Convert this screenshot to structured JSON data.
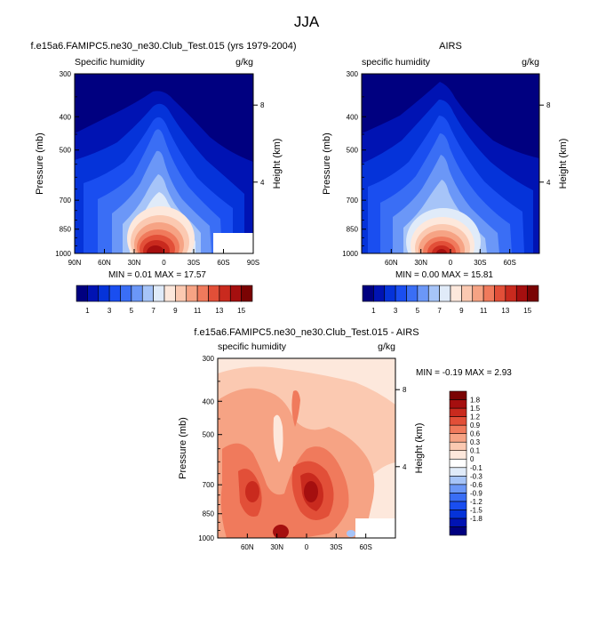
{
  "figure": {
    "title": "JJA"
  },
  "scales": {
    "top": {
      "colors": [
        "#000080",
        "#0013b3",
        "#0533d9",
        "#1a4ef0",
        "#3a6ef5",
        "#6b97f7",
        "#a6c4f8",
        "#e0ebf9",
        "#fde8dc",
        "#fbc9b1",
        "#f6a384",
        "#f07a5c",
        "#e24f38",
        "#c92a1e",
        "#a50f0f",
        "#7a0303"
      ],
      "labels": [
        "1",
        "3",
        "5",
        "7",
        "9",
        "11",
        "13",
        "15"
      ]
    },
    "diff": {
      "colors": [
        "#000080",
        "#0013b3",
        "#0533d9",
        "#1a4ef0",
        "#3a6ef5",
        "#6b97f7",
        "#a6c4f8",
        "#e0ebf9",
        "#ffffff",
        "#fde8dc",
        "#fbc9b1",
        "#f6a384",
        "#f07a5c",
        "#e24f38",
        "#c92a1e",
        "#a50f0f",
        "#7a0303"
      ],
      "labels": [
        "1.8",
        "1.5",
        "1.2",
        "0.9",
        "0.6",
        "0.3",
        "0.1",
        "0",
        "-0.1",
        "-0.3",
        "-0.6",
        "-0.9",
        "-1.2",
        "-1.5",
        "-1.8"
      ]
    }
  },
  "chart_data": [
    {
      "type": "heatmap",
      "title": "f.e15a6.FAMIPC5.ne30_ne30.Club_Test.015 (yrs 1979-2004)",
      "left_label": "Specific humidity",
      "right_label": "g/kg",
      "ylabel": "Pressure (mb)",
      "y2label": "Height (km)",
      "y_ticks": [
        "300",
        "400",
        "500",
        "700",
        "850",
        "1000"
      ],
      "y2_ticks": [
        "8",
        "4"
      ],
      "x_ticks": [
        "90N",
        "60N",
        "30N",
        "0",
        "30S",
        "60S",
        "90S"
      ],
      "stats": "MIN =  0.01  MAX =  17.57",
      "min": 0.01,
      "max": 17.57
    },
    {
      "type": "heatmap",
      "title": "AIRS",
      "left_label": "specific humidity",
      "right_label": "g/kg",
      "ylabel": "Pressure (mb)",
      "y2label": "Height (km)",
      "y_ticks": [
        "300",
        "400",
        "500",
        "700",
        "850",
        "1000"
      ],
      "y2_ticks": [
        "8",
        "4"
      ],
      "x_ticks": [
        "60N",
        "30N",
        "0",
        "30S",
        "60S"
      ],
      "stats": "MIN =  0.00  MAX =  15.81",
      "min": 0.0,
      "max": 15.81
    },
    {
      "type": "heatmap",
      "title": "f.e15a6.FAMIPC5.ne30_ne30.Club_Test.015 - AIRS",
      "left_label": "specific humidity",
      "right_label": "g/kg",
      "ylabel": "Pressure (mb)",
      "y2label": "Height (km)",
      "y_ticks": [
        "300",
        "400",
        "500",
        "700",
        "850",
        "1000"
      ],
      "y2_ticks": [
        "8",
        "4"
      ],
      "x_ticks": [
        "60N",
        "30N",
        "0",
        "30S",
        "60S"
      ],
      "stats": "MIN = -0.19  MAX =  2.93",
      "min": -0.19,
      "max": 2.93
    }
  ]
}
